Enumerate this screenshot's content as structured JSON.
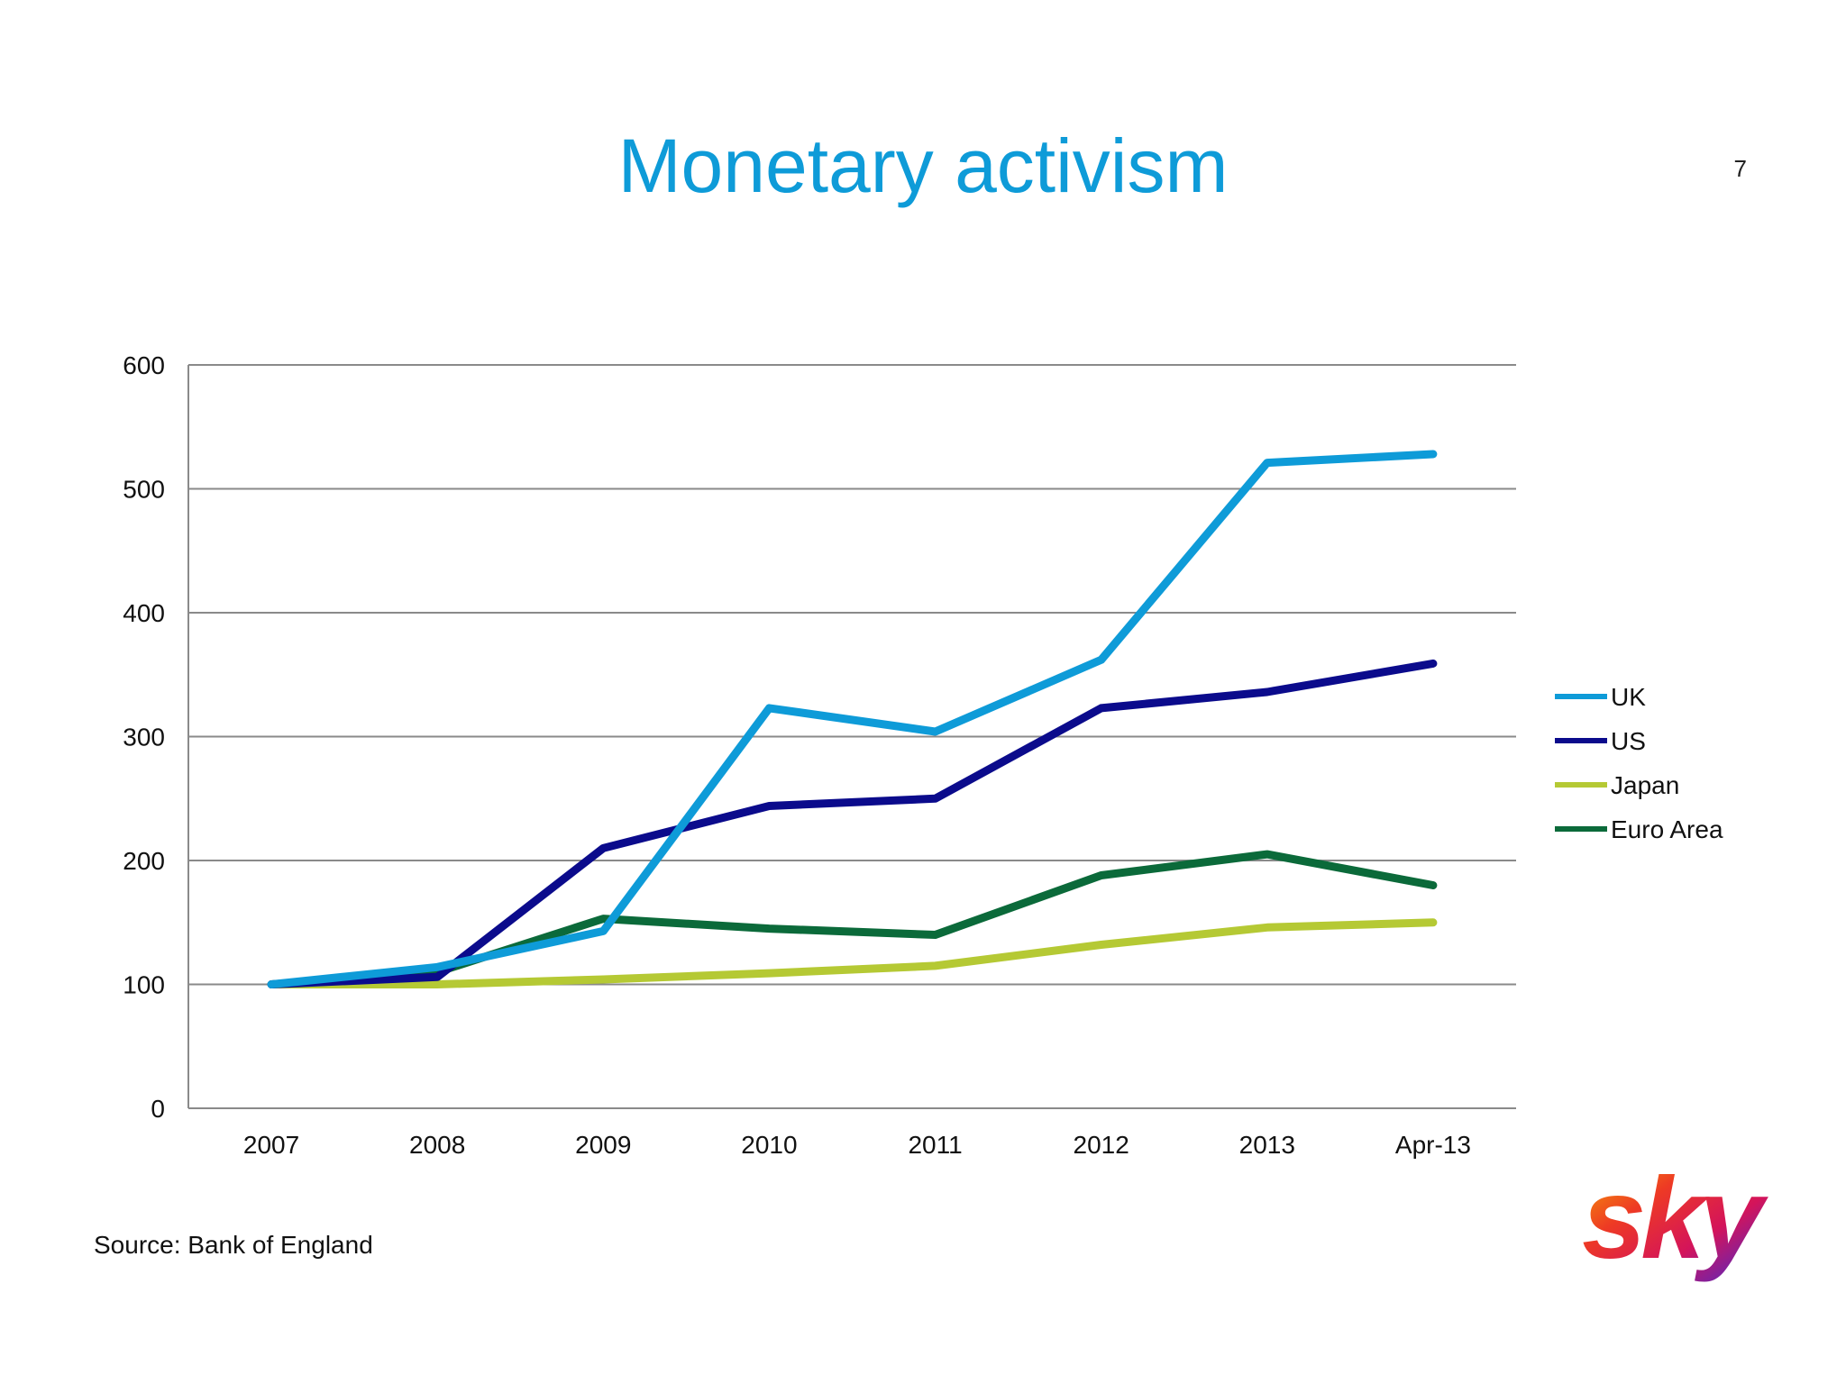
{
  "slide": {
    "title": "Monetary activism",
    "page_number": "7",
    "source": "Source: Bank of England",
    "logo_text": "sky"
  },
  "chart_data": {
    "type": "line",
    "categories": [
      "2007",
      "2008",
      "2009",
      "2010",
      "2011",
      "2012",
      "2013",
      "Apr-13"
    ],
    "ylim": [
      0,
      600
    ],
    "yticks": [
      "0",
      "100",
      "200",
      "300",
      "400",
      "500",
      "600"
    ],
    "grid": true,
    "legend_position": "right",
    "series": [
      {
        "name": "UK",
        "color": "#0e9bd8",
        "values": [
          100,
          114,
          143,
          323,
          304,
          362,
          521,
          528
        ]
      },
      {
        "name": "US",
        "color": "#0b0b8c",
        "values": [
          100,
          106,
          210,
          244,
          250,
          323,
          336,
          359
        ]
      },
      {
        "name": "Japan",
        "color": "#b5c934",
        "values": [
          100,
          100,
          104,
          109,
          115,
          132,
          146,
          150
        ]
      },
      {
        "name": "Euro Area",
        "color": "#0b6a3a",
        "values": [
          100,
          110,
          153,
          145,
          140,
          188,
          205,
          180
        ]
      }
    ]
  }
}
